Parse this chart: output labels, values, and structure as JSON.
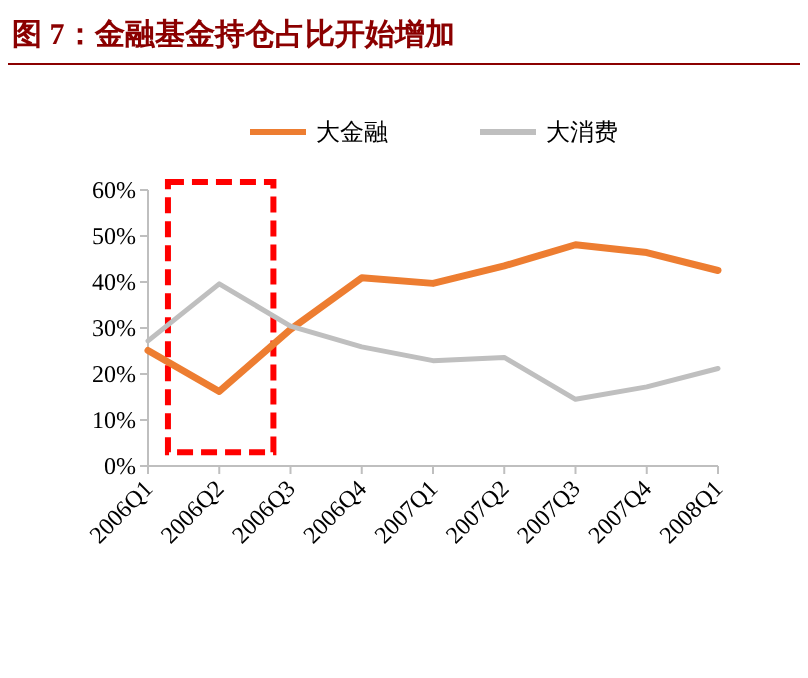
{
  "chart_data": {
    "type": "line",
    "title": "图 7：金融基金持仓占比开始增加",
    "categories": [
      "2006Q1",
      "2006Q2",
      "2006Q3",
      "2006Q4",
      "2007Q1",
      "2007Q2",
      "2007Q3",
      "2007Q4",
      "2008Q1"
    ],
    "series": [
      {
        "name": "大金融",
        "color": "#ed7d31",
        "values": [
          25.1,
          16.2,
          29.7,
          40.9,
          39.7,
          43.5,
          48.1,
          46.4,
          42.5
        ]
      },
      {
        "name": "大消费",
        "color": "#bfbfbf",
        "values": [
          27.2,
          39.6,
          30.4,
          25.9,
          22.9,
          23.6,
          14.5,
          17.2,
          21.2
        ]
      }
    ],
    "ylim": [
      0,
      60
    ],
    "yticks": [
      {
        "value": 0,
        "label": "0%"
      },
      {
        "value": 10,
        "label": "10%"
      },
      {
        "value": 20,
        "label": "20%"
      },
      {
        "value": 30,
        "label": "30%"
      },
      {
        "value": 40,
        "label": "40%"
      },
      {
        "value": 50,
        "label": "50%"
      },
      {
        "value": 60,
        "label": "60%"
      }
    ],
    "legend": "top",
    "grid": false
  }
}
